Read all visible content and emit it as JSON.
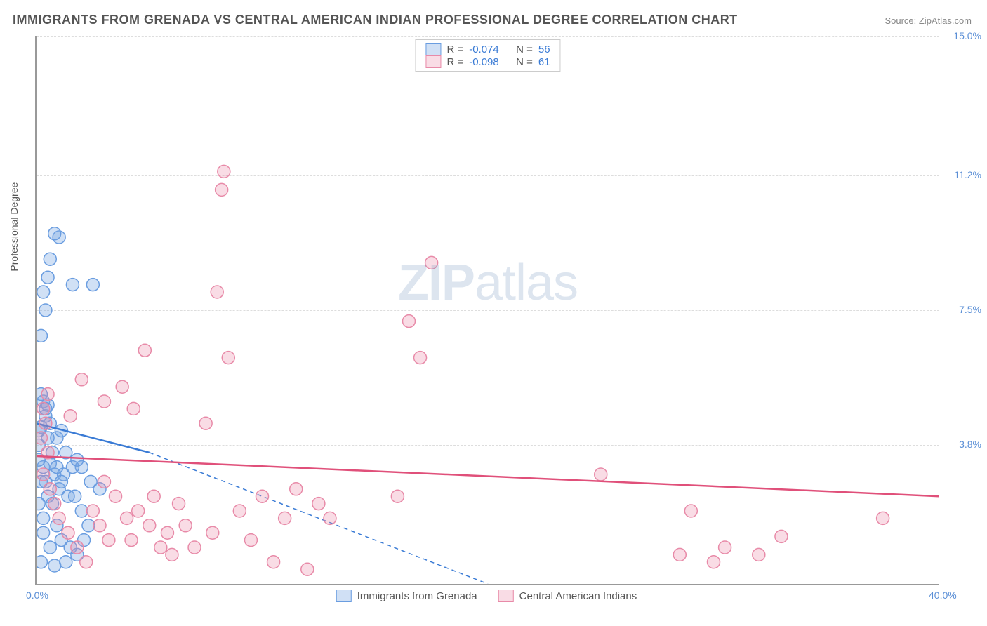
{
  "title": "IMMIGRANTS FROM GRENADA VS CENTRAL AMERICAN INDIAN PROFESSIONAL DEGREE CORRELATION CHART",
  "source": "Source: ZipAtlas.com",
  "watermark": {
    "part1": "ZIP",
    "part2": "atlas"
  },
  "chart": {
    "type": "scatter",
    "background_color": "#ffffff",
    "grid_color": "#dddddd",
    "axis_color": "#999999",
    "xlim": [
      0,
      40
    ],
    "ylim": [
      0,
      15
    ],
    "xticks": [
      {
        "value": 0,
        "label": "0.0%"
      },
      {
        "value": 40,
        "label": "40.0%"
      }
    ],
    "yticks": [
      {
        "value": 3.8,
        "label": "3.8%"
      },
      {
        "value": 7.5,
        "label": "7.5%"
      },
      {
        "value": 11.2,
        "label": "11.2%"
      },
      {
        "value": 15.0,
        "label": "15.0%"
      }
    ],
    "ylabel": "Professional Degree",
    "tick_color": "#5b8fd6",
    "marker_radius": 9,
    "marker_stroke_width": 1.5,
    "trend_line_width": 2.5,
    "trend_dash": "6,5",
    "series": [
      {
        "key": "grenada",
        "label": "Immigrants from Grenada",
        "fill": "rgba(120,165,225,0.35)",
        "stroke": "#6a9de0",
        "trend_stroke": "#3a7bd5",
        "r": "-0.074",
        "n": "56",
        "trend_solid": {
          "x1": 0,
          "y1": 4.4,
          "x2": 5,
          "y2": 3.6
        },
        "trend_dash_line": {
          "x1": 5,
          "y1": 3.6,
          "x2": 20,
          "y2": 0
        },
        "points": [
          [
            0.2,
            4.3
          ],
          [
            0.1,
            4.2
          ],
          [
            0.4,
            4.6
          ],
          [
            0.3,
            5.0
          ],
          [
            0.2,
            5.2
          ],
          [
            0.5,
            4.9
          ],
          [
            0.3,
            3.2
          ],
          [
            0.6,
            3.3
          ],
          [
            0.4,
            2.8
          ],
          [
            0.8,
            3.0
          ],
          [
            0.5,
            2.4
          ],
          [
            0.7,
            2.2
          ],
          [
            1.0,
            2.6
          ],
          [
            1.2,
            3.0
          ],
          [
            1.4,
            2.4
          ],
          [
            0.9,
            1.6
          ],
          [
            1.1,
            1.2
          ],
          [
            1.5,
            1.0
          ],
          [
            0.3,
            1.4
          ],
          [
            0.6,
            1.0
          ],
          [
            0.2,
            0.6
          ],
          [
            0.8,
            0.5
          ],
          [
            1.3,
            0.6
          ],
          [
            1.8,
            0.8
          ],
          [
            2.1,
            1.2
          ],
          [
            2.4,
            2.8
          ],
          [
            2.0,
            3.2
          ],
          [
            2.8,
            2.6
          ],
          [
            0.2,
            6.8
          ],
          [
            0.4,
            7.5
          ],
          [
            0.3,
            8.0
          ],
          [
            0.5,
            8.4
          ],
          [
            0.6,
            8.9
          ],
          [
            1.0,
            9.5
          ],
          [
            0.8,
            9.6
          ],
          [
            1.6,
            8.2
          ],
          [
            2.5,
            8.2
          ],
          [
            0.4,
            4.8
          ],
          [
            0.6,
            4.4
          ],
          [
            0.9,
            4.0
          ],
          [
            1.1,
            4.2
          ],
          [
            1.3,
            3.6
          ],
          [
            1.6,
            3.2
          ],
          [
            1.8,
            3.4
          ],
          [
            2.0,
            2.0
          ],
          [
            2.3,
            1.6
          ],
          [
            0.1,
            3.8
          ],
          [
            0.1,
            3.4
          ],
          [
            0.2,
            2.8
          ],
          [
            0.1,
            2.2
          ],
          [
            0.3,
            1.8
          ],
          [
            0.5,
            4.0
          ],
          [
            0.7,
            3.6
          ],
          [
            0.9,
            3.2
          ],
          [
            1.1,
            2.8
          ],
          [
            1.7,
            2.4
          ]
        ]
      },
      {
        "key": "cai",
        "label": "Central American Indians",
        "fill": "rgba(235,140,170,0.30)",
        "stroke": "#e88aa8",
        "trend_stroke": "#e0507a",
        "r": "-0.098",
        "n": "61",
        "trend_solid": {
          "x1": 0,
          "y1": 3.5,
          "x2": 40,
          "y2": 2.4
        },
        "trend_dash_line": null,
        "points": [
          [
            0.3,
            4.8
          ],
          [
            0.4,
            4.4
          ],
          [
            0.2,
            4.0
          ],
          [
            0.5,
            3.6
          ],
          [
            0.3,
            3.0
          ],
          [
            0.6,
            2.6
          ],
          [
            0.8,
            2.2
          ],
          [
            1.0,
            1.8
          ],
          [
            1.4,
            1.4
          ],
          [
            1.8,
            1.0
          ],
          [
            2.2,
            0.6
          ],
          [
            2.5,
            2.0
          ],
          [
            2.8,
            1.6
          ],
          [
            3.0,
            2.8
          ],
          [
            3.2,
            1.2
          ],
          [
            3.5,
            2.4
          ],
          [
            3.8,
            5.4
          ],
          [
            4.0,
            1.8
          ],
          [
            4.2,
            1.2
          ],
          [
            4.5,
            2.0
          ],
          [
            4.8,
            6.4
          ],
          [
            5.0,
            1.6
          ],
          [
            5.2,
            2.4
          ],
          [
            5.5,
            1.0
          ],
          [
            5.8,
            1.4
          ],
          [
            6.0,
            0.8
          ],
          [
            6.3,
            2.2
          ],
          [
            6.6,
            1.6
          ],
          [
            7.0,
            1.0
          ],
          [
            7.5,
            4.4
          ],
          [
            7.8,
            1.4
          ],
          [
            8.0,
            8.0
          ],
          [
            8.2,
            10.8
          ],
          [
            8.3,
            11.3
          ],
          [
            8.5,
            6.2
          ],
          [
            9.0,
            2.0
          ],
          [
            9.5,
            1.2
          ],
          [
            10.0,
            2.4
          ],
          [
            10.5,
            0.6
          ],
          [
            11.0,
            1.8
          ],
          [
            11.5,
            2.6
          ],
          [
            12.0,
            0.4
          ],
          [
            12.5,
            2.2
          ],
          [
            13.0,
            1.8
          ],
          [
            16.0,
            2.4
          ],
          [
            16.5,
            7.2
          ],
          [
            17.0,
            6.2
          ],
          [
            17.5,
            8.8
          ],
          [
            25.0,
            3.0
          ],
          [
            28.5,
            0.8
          ],
          [
            29.0,
            2.0
          ],
          [
            30.0,
            0.6
          ],
          [
            30.5,
            1.0
          ],
          [
            32.0,
            0.8
          ],
          [
            33.0,
            1.3
          ],
          [
            37.5,
            1.8
          ],
          [
            2.0,
            5.6
          ],
          [
            3.0,
            5.0
          ],
          [
            1.5,
            4.6
          ],
          [
            4.3,
            4.8
          ],
          [
            0.5,
            5.2
          ]
        ]
      }
    ],
    "legend_top": {
      "r_label": "R =",
      "n_label": "N ="
    }
  }
}
